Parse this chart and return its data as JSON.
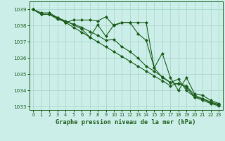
{
  "background_color": "#cceee8",
  "grid_color": "#aad8cc",
  "line_color": "#1a5c1a",
  "title": "Graphe pression niveau de la mer (hPa)",
  "xlim": [
    -0.5,
    23.5
  ],
  "ylim": [
    1032.8,
    1039.5
  ],
  "yticks": [
    1033,
    1034,
    1035,
    1036,
    1037,
    1038,
    1039
  ],
  "xticks": [
    0,
    1,
    2,
    3,
    4,
    5,
    6,
    7,
    8,
    9,
    10,
    11,
    12,
    13,
    14,
    15,
    16,
    17,
    18,
    19,
    20,
    21,
    22,
    23
  ],
  "series": [
    [
      1039.0,
      1038.7,
      1038.7,
      1038.5,
      1038.2,
      1038.35,
      1038.35,
      1038.35,
      1038.3,
      1038.55,
      1038.0,
      1038.2,
      1038.2,
      1038.2,
      1038.2,
      1035.4,
      1036.3,
      1034.8,
      1034.0,
      1034.8,
      1033.8,
      1033.7,
      1033.4,
      1033.2
    ],
    [
      1039.0,
      1038.7,
      1038.7,
      1038.4,
      1038.25,
      1038.1,
      1037.9,
      1037.65,
      1037.4,
      1037.1,
      1037.15,
      1036.7,
      1036.4,
      1036.0,
      1035.5,
      1035.2,
      1034.85,
      1034.5,
      1034.4,
      1034.3,
      1033.7,
      1033.5,
      1033.3,
      1033.15
    ],
    [
      1039.0,
      1038.8,
      1038.8,
      1038.5,
      1038.2,
      1037.9,
      1037.6,
      1037.3,
      1037.0,
      1036.7,
      1036.4,
      1036.1,
      1035.8,
      1035.5,
      1035.2,
      1034.9,
      1034.6,
      1034.3,
      1034.45,
      1034.2,
      1033.6,
      1033.4,
      1033.2,
      1033.05
    ],
    [
      1039.0,
      1038.7,
      1038.7,
      1038.5,
      1038.3,
      1038.05,
      1037.8,
      1037.3,
      1038.05,
      1037.35,
      1038.05,
      1038.2,
      1038.2,
      1037.5,
      1037.1,
      1035.4,
      1034.8,
      1034.5,
      1034.7,
      1034.0,
      1033.6,
      1033.5,
      1033.25,
      1033.1
    ]
  ]
}
